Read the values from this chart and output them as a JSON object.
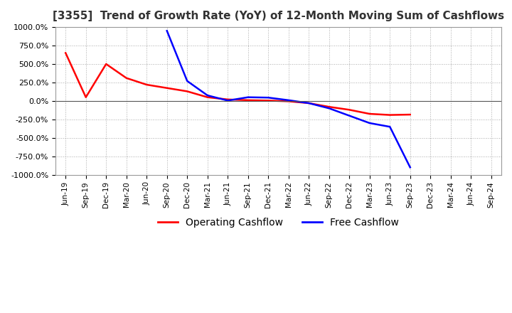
{
  "title": "[3355]  Trend of Growth Rate (YoY) of 12-Month Moving Sum of Cashflows",
  "title_fontsize": 11,
  "ylim": [
    -1000,
    1000
  ],
  "yticks": [
    1000,
    750,
    500,
    250,
    0,
    -250,
    -500,
    -750,
    -1000
  ],
  "ytick_labels": [
    "1000.0%",
    "750.0%",
    "500.0%",
    "250.0%",
    "0.0%",
    "-250.0%",
    "-500.0%",
    "-750.0%",
    "-1000.0%"
  ],
  "background_color": "#ffffff",
  "plot_bg_color": "#ffffff",
  "grid_color": "#aaaaaa",
  "legend_labels": [
    "Operating Cashflow",
    "Free Cashflow"
  ],
  "legend_colors": [
    "#ff0000",
    "#0000ff"
  ],
  "x_labels": [
    "Jun-19",
    "Sep-19",
    "Dec-19",
    "Mar-20",
    "Jun-20",
    "Sep-20",
    "Dec-20",
    "Mar-21",
    "Jun-21",
    "Sep-21",
    "Dec-21",
    "Mar-22",
    "Jun-22",
    "Sep-22",
    "Dec-22",
    "Mar-23",
    "Jun-23",
    "Sep-23",
    "Dec-23",
    "Mar-24",
    "Jun-24",
    "Sep-24"
  ],
  "operating_cashflow": [
    650,
    50,
    500,
    310,
    220,
    175,
    130,
    50,
    20,
    10,
    5,
    -5,
    -30,
    -80,
    -120,
    -175,
    -190,
    -185,
    null,
    null,
    null,
    null
  ],
  "free_cashflow": [
    null,
    null,
    null,
    null,
    null,
    950,
    270,
    75,
    5,
    50,
    45,
    10,
    -30,
    -100,
    -200,
    -300,
    -350,
    -900,
    null,
    null,
    null,
    null
  ]
}
